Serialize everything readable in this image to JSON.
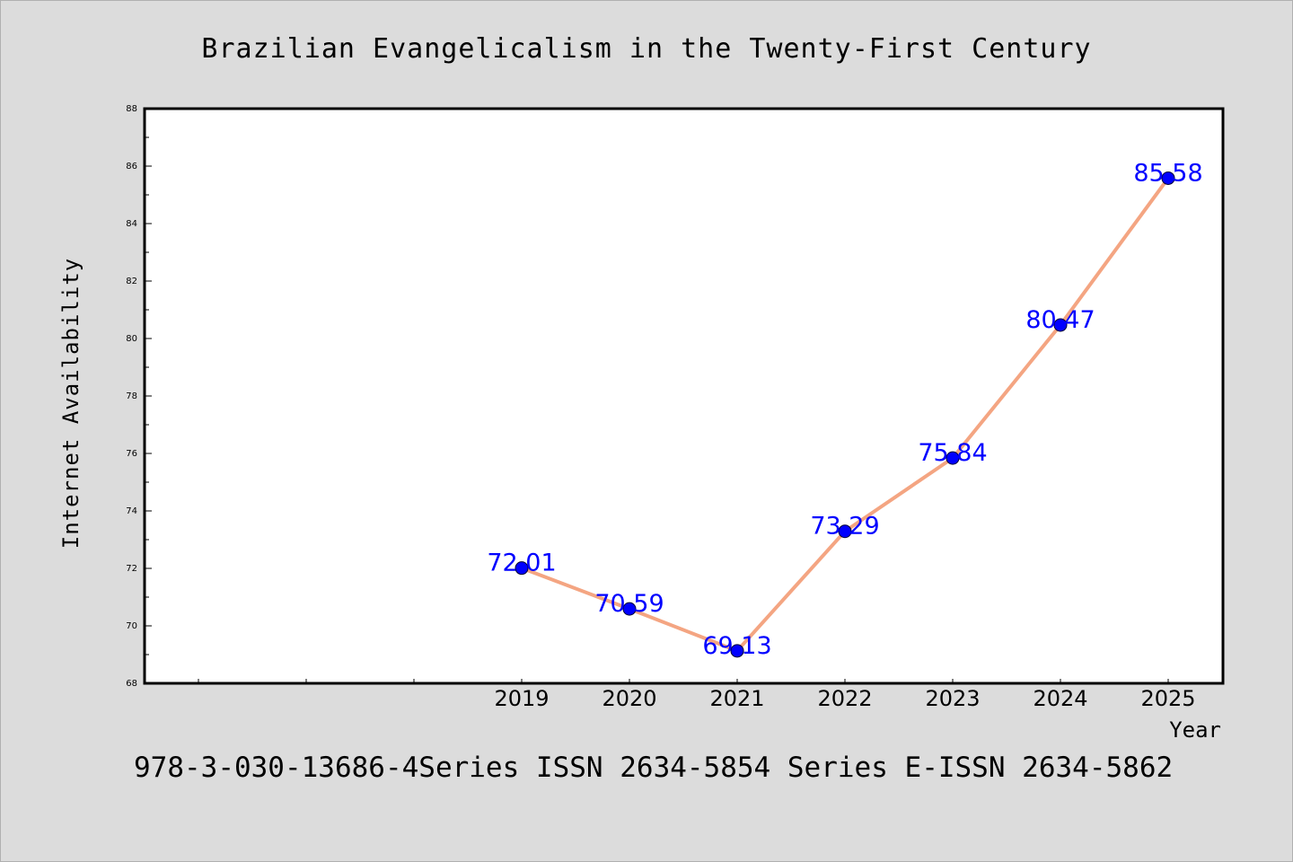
{
  "chart_data": {
    "type": "line",
    "title": "Brazilian Evangelicalism in the Twenty-First Century",
    "xlabel": "Year",
    "ylabel": "Internet Availability",
    "footnote": "978-3-030-13686-4Series ISSN 2634-5854 Series E-ISSN 2634-5862",
    "categories": [
      "2019",
      "2020",
      "2021",
      "2022",
      "2023",
      "2024",
      "2025"
    ],
    "values": [
      72.01,
      70.59,
      69.13,
      73.29,
      75.84,
      80.47,
      85.58
    ],
    "data_labels": [
      "72.01",
      "70.59",
      "69.13",
      "73.29",
      "75.84",
      "80.47",
      "85.58"
    ],
    "ylim": [
      68,
      88
    ],
    "yticks": [
      68,
      70,
      72,
      74,
      76,
      78,
      80,
      82,
      84,
      86,
      88
    ],
    "grid": false,
    "line_color": "#f4a582",
    "marker_color": "#0000ff",
    "label_color": "#0000ff"
  }
}
